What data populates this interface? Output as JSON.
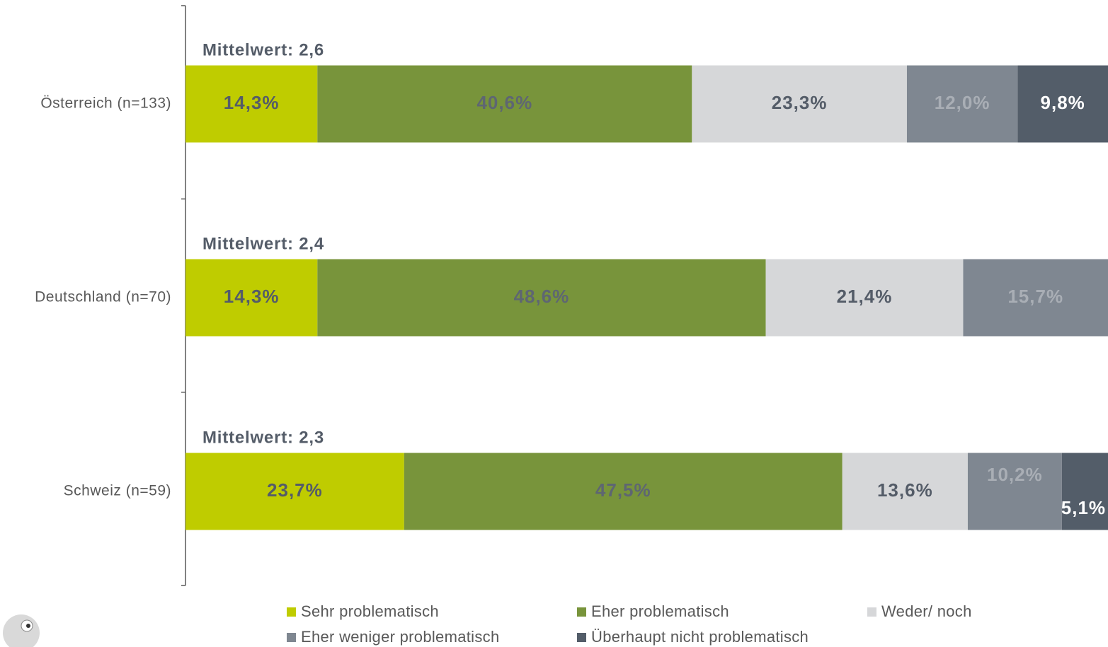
{
  "chart_data": {
    "type": "bar",
    "orientation": "horizontal",
    "stacked": true,
    "categories": [
      "Österreich (n=133)",
      "Deutschland (n=70)",
      "Schweiz (n=59)"
    ],
    "annotations": [
      "Mittelwert: 2,6",
      "Mittelwert: 2,4",
      "Mittelwert: 2,3"
    ],
    "xlim": [
      0,
      100
    ],
    "series": [
      {
        "name": "Sehr problematisch",
        "color": "#bfcc00",
        "label_color": "#545c68",
        "values": [
          14.3,
          14.3,
          23.7
        ],
        "value_labels": [
          "14,3%",
          "14,3%",
          "23,7%"
        ]
      },
      {
        "name": "Eher problematisch",
        "color": "#78943b",
        "label_color": "#5e6672",
        "values": [
          40.6,
          48.6,
          47.5
        ],
        "value_labels": [
          "40,6%",
          "48,6%",
          "47,5%"
        ]
      },
      {
        "name": "Weder/ noch",
        "color": "#d6d7d9",
        "label_color": "#545c68",
        "values": [
          23.3,
          21.4,
          13.6
        ],
        "value_labels": [
          "23,3%",
          "21,4%",
          "13,6%"
        ]
      },
      {
        "name": "Eher weniger problematisch",
        "color": "#7f8791",
        "label_color": "#a9aeb5",
        "values": [
          12.0,
          15.7,
          10.2
        ],
        "value_labels": [
          "12,0%",
          "15,7%",
          "10,2%"
        ]
      },
      {
        "name": "Überhaupt nicht problematisch",
        "color": "#535d69",
        "label_color": "#ffffff",
        "values": [
          9.8,
          null,
          5.1
        ],
        "value_labels": [
          "9,8%",
          null,
          "5,1%"
        ]
      }
    ]
  }
}
